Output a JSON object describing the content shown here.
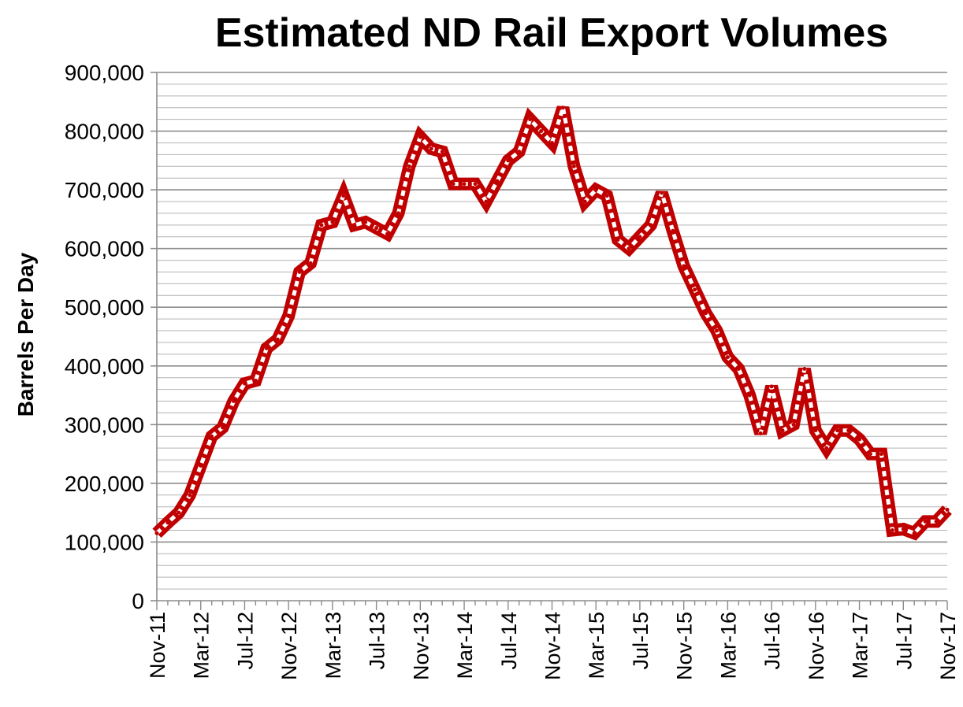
{
  "chart_data": {
    "type": "line",
    "title": "Estimated ND Rail Export Volumes",
    "xlabel": "",
    "ylabel": "Barrels Per Day",
    "ylim": [
      0,
      900000
    ],
    "y_major_step": 100000,
    "y_minor_step": 20000,
    "y_tick_labels": [
      "0",
      "100,000",
      "200,000",
      "300,000",
      "400,000",
      "500,000",
      "600,000",
      "700,000",
      "800,000",
      "900,000"
    ],
    "x_tick_labels": [
      "Nov-11",
      "Mar-12",
      "Jul-12",
      "Nov-12",
      "Mar-13",
      "Jul-13",
      "Nov-13",
      "Mar-14",
      "Jul-14",
      "Nov-14",
      "Mar-15",
      "Jul-15",
      "Nov-15",
      "Mar-16",
      "Jul-16",
      "Nov-16",
      "Mar-17",
      "Jul-17",
      "Nov-17"
    ],
    "x_tick_every": 4,
    "line_color": "#c00000",
    "series": [
      {
        "name": "Estimated ND Rail Export Volumes",
        "values": [
          115000,
          133000,
          150000,
          180000,
          230000,
          280000,
          295000,
          340000,
          370000,
          375000,
          430000,
          445000,
          485000,
          560000,
          575000,
          640000,
          645000,
          690000,
          640000,
          645000,
          635000,
          625000,
          660000,
          740000,
          790000,
          770000,
          765000,
          710000,
          710000,
          710000,
          680000,
          715000,
          750000,
          765000,
          820000,
          800000,
          780000,
          840000,
          740000,
          680000,
          700000,
          690000,
          615000,
          600000,
          620000,
          640000,
          695000,
          630000,
          570000,
          530000,
          490000,
          460000,
          415000,
          395000,
          350000,
          285000,
          365000,
          290000,
          300000,
          395000,
          290000,
          260000,
          290000,
          290000,
          275000,
          250000,
          250000,
          120000,
          122000,
          115000,
          135000,
          135000,
          155000
        ]
      }
    ]
  }
}
